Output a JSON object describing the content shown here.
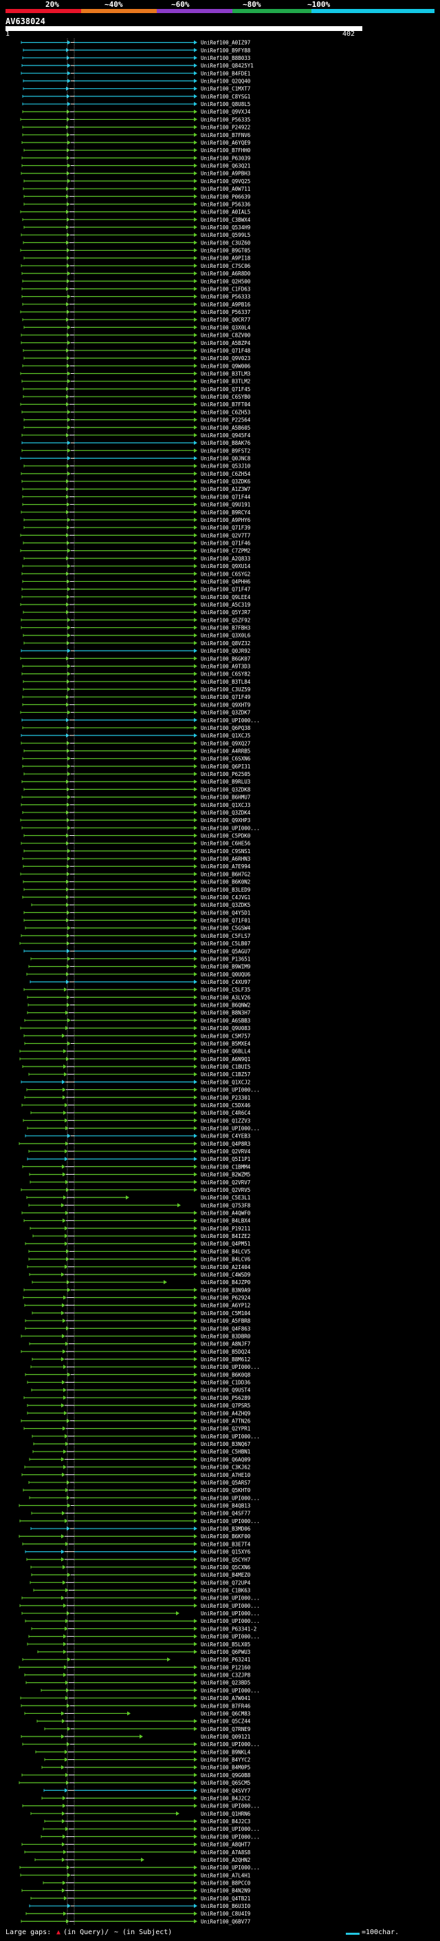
{
  "scale": {
    "ticks": [
      "20%",
      "~40%",
      "~60%",
      "~80%",
      "~100%"
    ],
    "colors": [
      "#e8142a",
      "#e8781e",
      "#8c3cc8",
      "#21a84b",
      "#14c8e6"
    ]
  },
  "query": {
    "id": "AV638024",
    "start": "1",
    "end": "402"
  },
  "legend": {
    "large_gaps_label": "Large gaps:",
    "in_query_label": "(in Query)/",
    "in_subject_label": "~ (in Subject)",
    "scale_label": "=100char."
  },
  "colors": {
    "cyan": "#23c5e0",
    "green": "#5ec828",
    "white": "#ffffff",
    "bg": "#000000"
  },
  "hits": [
    {
      "label": "UniRef100_A0IZ97",
      "color": "cyan"
    },
    {
      "label": "UniRef100_B9FY88",
      "color": "cyan"
    },
    {
      "label": "UniRef100_B8B033",
      "color": "cyan"
    },
    {
      "label": "UniRef100_Q8425Y1",
      "color": "cyan"
    },
    {
      "label": "UniRef100_B4FDE1",
      "color": "cyan"
    },
    {
      "label": "UniRef100_Q2QQ40",
      "color": "cyan"
    },
    {
      "label": "UniRef100_C1MXT7",
      "color": "cyan"
    },
    {
      "label": "UniRef100_C8YSG1",
      "color": "cyan"
    },
    {
      "label": "UniRef100_Q8U8L5",
      "color": "cyan"
    },
    {
      "label": "UniRef100_Q9VXJ4",
      "color": "green"
    },
    {
      "label": "UniRef100_P56335",
      "color": "green"
    },
    {
      "label": "UniRef100_P24922",
      "color": "green"
    },
    {
      "label": "UniRef100_B7FNV6",
      "color": "green"
    },
    {
      "label": "UniRef100_A6YQE9",
      "color": "green"
    },
    {
      "label": "UniRef100_B7FHH0",
      "color": "green"
    },
    {
      "label": "UniRef100_P63039",
      "color": "green"
    },
    {
      "label": "UniRef100_Q63Q21",
      "color": "green"
    },
    {
      "label": "UniRef100_A9PBH3",
      "color": "green"
    },
    {
      "label": "UniRef100_Q9VQ25",
      "color": "green"
    },
    {
      "label": "UniRef100_A0W711",
      "color": "green"
    },
    {
      "label": "UniRef100_P06639",
      "color": "green"
    },
    {
      "label": "UniRef100_P56336",
      "color": "green"
    },
    {
      "label": "UniRef100_A0IAL5",
      "color": "green"
    },
    {
      "label": "UniRef100_C3BWX4",
      "color": "green"
    },
    {
      "label": "UniRef100_Q534H9",
      "color": "green"
    },
    {
      "label": "UniRef100_Q599L5",
      "color": "green"
    },
    {
      "label": "UniRef100_C3UZ60",
      "color": "green"
    },
    {
      "label": "UniRef100_B9GT05",
      "color": "green"
    },
    {
      "label": "UniRef100_A9PI18",
      "color": "green"
    },
    {
      "label": "UniRef100_C7SC06",
      "color": "green"
    },
    {
      "label": "UniRef100_A6R8D0",
      "color": "green"
    },
    {
      "label": "UniRef100_Q2H500",
      "color": "green"
    },
    {
      "label": "UniRef100_C1FD63",
      "color": "green"
    },
    {
      "label": "UniRef100_P56333",
      "color": "green"
    },
    {
      "label": "UniRef100_A9PB16",
      "color": "green"
    },
    {
      "label": "UniRef100_P56337",
      "color": "green"
    },
    {
      "label": "UniRef100_Q0CR77",
      "color": "green"
    },
    {
      "label": "UniRef100_Q3X0L4",
      "color": "green"
    },
    {
      "label": "UniRef100_C8ZV00",
      "color": "green"
    },
    {
      "label": "UniRef100_A5BZP4",
      "color": "green"
    },
    {
      "label": "UniRef100_Q71F48",
      "color": "green"
    },
    {
      "label": "UniRef100_Q9V023",
      "color": "green"
    },
    {
      "label": "UniRef100_Q9W006",
      "color": "green"
    },
    {
      "label": "UniRef100_B3TLM3",
      "color": "green"
    },
    {
      "label": "UniRef100_B3TLM2",
      "color": "green"
    },
    {
      "label": "UniRef100_Q71F45",
      "color": "green"
    },
    {
      "label": "UniRef100_C6SYB0",
      "color": "green"
    },
    {
      "label": "UniRef100_B7FT04",
      "color": "green"
    },
    {
      "label": "UniRef100_C6ZH53",
      "color": "green"
    },
    {
      "label": "UniRef100_P22564",
      "color": "green"
    },
    {
      "label": "UniRef100_A5B605",
      "color": "green"
    },
    {
      "label": "UniRef100_Q945F4",
      "color": "green"
    },
    {
      "label": "UniRef100_B8AK76",
      "color": "cyan"
    },
    {
      "label": "UniRef100_B9FST2",
      "color": "green"
    },
    {
      "label": "UniRef100_Q0JNC8",
      "color": "cyan"
    },
    {
      "label": "UniRef100_Q53J10",
      "color": "green"
    },
    {
      "label": "UniRef100_C6ZH54",
      "color": "green"
    },
    {
      "label": "UniRef100_Q3ZDK6",
      "color": "green"
    },
    {
      "label": "UniRef100_A1Z3W7",
      "color": "green"
    },
    {
      "label": "UniRef100_Q71F44",
      "color": "green"
    },
    {
      "label": "UniRef100_Q9U191",
      "color": "green"
    },
    {
      "label": "UniRef100_B9RCY4",
      "color": "green"
    },
    {
      "label": "UniRef100_A9PHY6",
      "color": "green"
    },
    {
      "label": "UniRef100_Q71F39",
      "color": "green"
    },
    {
      "label": "UniRef100_Q2V7T7",
      "color": "green"
    },
    {
      "label": "UniRef100_Q71F46",
      "color": "green"
    },
    {
      "label": "UniRef100_C7ZPM2",
      "color": "green"
    },
    {
      "label": "UniRef100_A2Q833",
      "color": "green"
    },
    {
      "label": "UniRef100_Q9XU14",
      "color": "green"
    },
    {
      "label": "UniRef100_C6SYG2",
      "color": "green"
    },
    {
      "label": "UniRef100_Q4PHH6",
      "color": "green"
    },
    {
      "label": "UniRef100_Q71F47",
      "color": "green"
    },
    {
      "label": "UniRef100_Q9LEE4",
      "color": "green"
    },
    {
      "label": "UniRef100_A5C319",
      "color": "green"
    },
    {
      "label": "UniRef100_Q5YJR7",
      "color": "green"
    },
    {
      "label": "UniRef100_Q5ZF92",
      "color": "green"
    },
    {
      "label": "UniRef100_B7FBH3",
      "color": "green"
    },
    {
      "label": "UniRef100_Q3X0L6",
      "color": "green"
    },
    {
      "label": "UniRef100_Q8VZ32",
      "color": "green"
    },
    {
      "label": "UniRef100_Q0JR92",
      "color": "cyan"
    },
    {
      "label": "UniRef100_B6GK07",
      "color": "green"
    },
    {
      "label": "UniRef100_A9T3D3",
      "color": "green"
    },
    {
      "label": "UniRef100_C6SY82",
      "color": "green"
    },
    {
      "label": "UniRef100_B3TL84",
      "color": "green"
    },
    {
      "label": "UniRef100_C3UZ59",
      "color": "green"
    },
    {
      "label": "UniRef100_Q71F49",
      "color": "green"
    },
    {
      "label": "UniRef100_Q9XHT9",
      "color": "green"
    },
    {
      "label": "UniRef100_Q3ZDK7",
      "color": "green"
    },
    {
      "label": "UniRef100_UPI000...",
      "color": "cyan"
    },
    {
      "label": "UniRef100_Q6PQ38",
      "color": "green"
    },
    {
      "label": "UniRef100_Q1XCJ5",
      "color": "cyan"
    },
    {
      "label": "UniRef100_Q9XQ27",
      "color": "green"
    },
    {
      "label": "UniRef100_A4RRB5",
      "color": "green"
    },
    {
      "label": "UniRef100_C6SXN6",
      "color": "green"
    },
    {
      "label": "UniRef100_Q6PI31",
      "color": "green"
    },
    {
      "label": "UniRef100_P62505",
      "color": "green"
    },
    {
      "label": "UniRef100_B9RLU3",
      "color": "green"
    },
    {
      "label": "UniRef100_Q3ZDK8",
      "color": "green"
    },
    {
      "label": "UniRef100_B6HMU7",
      "color": "green"
    },
    {
      "label": "UniRef100_Q1XCJ3",
      "color": "green"
    },
    {
      "label": "UniRef100_Q3ZDK4",
      "color": "green"
    },
    {
      "label": "UniRef100_Q9XHP3",
      "color": "green"
    },
    {
      "label": "UniRef100_UPI000...",
      "color": "green"
    },
    {
      "label": "UniRef100_C5PDK0",
      "color": "green"
    },
    {
      "label": "UniRef100_C6HE56",
      "color": "green"
    },
    {
      "label": "UniRef100_C9SNS1",
      "color": "green"
    },
    {
      "label": "UniRef100_A6RHN3",
      "color": "green"
    },
    {
      "label": "UniRef100_A7E994",
      "color": "green"
    },
    {
      "label": "UniRef100_B6H7G2",
      "color": "green"
    },
    {
      "label": "UniRef100_B6K0N2",
      "color": "green"
    },
    {
      "label": "UniRef100_B3LED9",
      "color": "green"
    },
    {
      "label": "UniRef100_C4JVG1",
      "color": "green"
    },
    {
      "label": "UniRef100_Q3ZDK5",
      "color": "green"
    },
    {
      "label": "UniRef100_Q4Y5D1",
      "color": "green"
    },
    {
      "label": "UniRef100_Q71F01",
      "color": "green"
    },
    {
      "label": "UniRef100_C5GSW4",
      "color": "green"
    },
    {
      "label": "UniRef100_C5FLS7",
      "color": "green"
    },
    {
      "label": "UniRef100_C5LB07",
      "color": "green"
    },
    {
      "label": "UniRef100_Q5AGU7",
      "color": "cyan"
    },
    {
      "label": "UniRef100_P13651",
      "color": "green"
    },
    {
      "label": "UniRef100_B9WIM9",
      "color": "green"
    },
    {
      "label": "UniRef100_Q0UQU6",
      "color": "green"
    },
    {
      "label": "UniRef100_C4XU97",
      "color": "cyan"
    },
    {
      "label": "UniRef100_C5LF35",
      "color": "green"
    },
    {
      "label": "UniRef100_A3LV26",
      "color": "green"
    },
    {
      "label": "UniRef100_B6QNW2",
      "color": "green"
    },
    {
      "label": "UniRef100_B8N3H7",
      "color": "green"
    },
    {
      "label": "UniRef100_A6SBB3",
      "color": "green"
    },
    {
      "label": "UniRef100_Q9U083",
      "color": "green"
    },
    {
      "label": "UniRef100_C5M757",
      "color": "green"
    },
    {
      "label": "UniRef100_B5MXE4",
      "color": "green"
    },
    {
      "label": "UniRef100_Q6BLL4",
      "color": "green"
    },
    {
      "label": "UniRef100_A6N9Q1",
      "color": "green"
    },
    {
      "label": "UniRef100_C1BUI5",
      "color": "green"
    },
    {
      "label": "UniRef100_C1BZ57",
      "color": "green"
    },
    {
      "label": "UniRef100_Q1XCJ2",
      "color": "cyan"
    },
    {
      "label": "UniRef100_UPI000...",
      "color": "green"
    },
    {
      "label": "UniRef100_P23301",
      "color": "green"
    },
    {
      "label": "UniRef100_C5DX46",
      "color": "green"
    },
    {
      "label": "UniRef100_C4R6C4",
      "color": "green"
    },
    {
      "label": "UniRef100_Q1ZZV3",
      "color": "green"
    },
    {
      "label": "UniRef100_UPI000...",
      "color": "green"
    },
    {
      "label": "UniRef100_C4YEB3",
      "color": "cyan"
    },
    {
      "label": "UniRef100_Q4P8R3",
      "color": "green"
    },
    {
      "label": "UniRef100_Q2VRV4",
      "color": "green"
    },
    {
      "label": "UniRef100_Q5I1P1",
      "color": "cyan"
    },
    {
      "label": "UniRef100_C1BMM4",
      "color": "green"
    },
    {
      "label": "UniRef100_B2WZM5",
      "color": "green"
    },
    {
      "label": "UniRef100_Q2VRV7",
      "color": "green"
    },
    {
      "label": "UniRef100_Q2VRV5",
      "color": "green"
    },
    {
      "label": "UniRef100_C5E3L1",
      "color": "green"
    },
    {
      "label": "UniRef100_Q753F8",
      "color": "green"
    },
    {
      "label": "UniRef100_A4QWF0",
      "color": "green"
    },
    {
      "label": "UniRef100_B4LBX4",
      "color": "green"
    },
    {
      "label": "UniRef100_P19211",
      "color": "green"
    },
    {
      "label": "UniRef100_B4IZE2",
      "color": "green"
    },
    {
      "label": "UniRef100_Q4PM51",
      "color": "green"
    },
    {
      "label": "UniRef100_B4LCV5",
      "color": "green"
    },
    {
      "label": "UniRef100_B4LCV6",
      "color": "green"
    },
    {
      "label": "UniRef100_A2I404",
      "color": "green"
    },
    {
      "label": "UniRef100_C4WSD9",
      "color": "green"
    },
    {
      "label": "UniRef100_B4JZP0",
      "color": "green"
    },
    {
      "label": "UniRef100_B3N9A9",
      "color": "green"
    },
    {
      "label": "UniRef100_P62924",
      "color": "green"
    },
    {
      "label": "UniRef100_A6YP12",
      "color": "green"
    },
    {
      "label": "UniRef100_C5M104",
      "color": "green"
    },
    {
      "label": "UniRef100_A5FBR8",
      "color": "green"
    },
    {
      "label": "UniRef100_Q4F863",
      "color": "green"
    },
    {
      "label": "UniRef100_B3DBR0",
      "color": "green"
    },
    {
      "label": "UniRef100_A8NJF7",
      "color": "green"
    },
    {
      "label": "UniRef100_B5DQ24",
      "color": "green"
    },
    {
      "label": "UniRef100_B8M612",
      "color": "green"
    },
    {
      "label": "UniRef100_UPI000...",
      "color": "green"
    },
    {
      "label": "UniRef100_B6K0Q8",
      "color": "green"
    },
    {
      "label": "UniRef100_C1DD36",
      "color": "green"
    },
    {
      "label": "UniRef100_Q9UST4",
      "color": "green"
    },
    {
      "label": "UniRef100_P56289",
      "color": "green"
    },
    {
      "label": "UniRef100_Q7PSR5",
      "color": "green"
    },
    {
      "label": "UniRef100_A4ZHQ9",
      "color": "green"
    },
    {
      "label": "UniRef100_A7TN26",
      "color": "green"
    },
    {
      "label": "UniRef100_Q2YPR1",
      "color": "green"
    },
    {
      "label": "UniRef100_UPI000...",
      "color": "green"
    },
    {
      "label": "UniRef100_B3NQ67",
      "color": "green"
    },
    {
      "label": "UniRef100_C5HBN1",
      "color": "green"
    },
    {
      "label": "UniRef100_Q6AQ09",
      "color": "green"
    },
    {
      "label": "UniRef100_C3KJ62",
      "color": "green"
    },
    {
      "label": "UniRef100_A7HE10",
      "color": "green"
    },
    {
      "label": "UniRef100_Q5ARS7",
      "color": "green"
    },
    {
      "label": "UniRef100_Q5KHT0",
      "color": "green"
    },
    {
      "label": "UniRef100_UPI000...",
      "color": "green"
    },
    {
      "label": "UniRef100_B4QB13",
      "color": "green"
    },
    {
      "label": "UniRef100_Q4SF77",
      "color": "green"
    },
    {
      "label": "UniRef100_UPI000...",
      "color": "green"
    },
    {
      "label": "UniRef100_B3MD06",
      "color": "cyan"
    },
    {
      "label": "UniRef100_B6KF00",
      "color": "green"
    },
    {
      "label": "UniRef100_B3E7T4",
      "color": "green"
    },
    {
      "label": "UniRef100_Q15XY6",
      "color": "cyan"
    },
    {
      "label": "UniRef100_Q5CYH7",
      "color": "green"
    },
    {
      "label": "UniRef100_Q5CXN6",
      "color": "green"
    },
    {
      "label": "UniRef100_B4MEZ0",
      "color": "green"
    },
    {
      "label": "UniRef100_Q72UP4",
      "color": "green"
    },
    {
      "label": "UniRef100_C1BK63",
      "color": "green"
    },
    {
      "label": "UniRef100_UPI000...",
      "color": "green"
    },
    {
      "label": "UniRef100_UPI000...",
      "color": "green"
    },
    {
      "label": "UniRef100_UPI000...",
      "color": "green"
    },
    {
      "label": "UniRef100_UPI000...",
      "color": "green"
    },
    {
      "label": "UniRef100_P63341-2",
      "color": "green"
    },
    {
      "label": "UniRef100_UPI000...",
      "color": "green"
    },
    {
      "label": "UniRef100_B5LX05",
      "color": "green"
    },
    {
      "label": "UniRef100_Q6PWU3",
      "color": "green"
    },
    {
      "label": "UniRef100_P63241",
      "color": "green"
    },
    {
      "label": "UniRef100_P12160",
      "color": "green"
    },
    {
      "label": "UniRef100_C3ZJP8",
      "color": "green"
    },
    {
      "label": "UniRef100_Q23BD5",
      "color": "green"
    },
    {
      "label": "UniRef100_UPI000...",
      "color": "green"
    },
    {
      "label": "UniRef100_A7W041",
      "color": "green"
    },
    {
      "label": "UniRef100_B7FR46",
      "color": "green"
    },
    {
      "label": "UniRef100_Q6CM83",
      "color": "green"
    },
    {
      "label": "UniRef100_Q5CZ44",
      "color": "green"
    },
    {
      "label": "UniRef100_Q7RNE9",
      "color": "green"
    },
    {
      "label": "UniRef100_Q09121",
      "color": "green"
    },
    {
      "label": "UniRef100_UPI000...",
      "color": "green"
    },
    {
      "label": "UniRef100_B9NKL4",
      "color": "green"
    },
    {
      "label": "UniRef100_B4YYC2",
      "color": "green"
    },
    {
      "label": "UniRef100_B4M0P5",
      "color": "green"
    },
    {
      "label": "UniRef100_Q9G0B8",
      "color": "green"
    },
    {
      "label": "UniRef100_Q6SCM5",
      "color": "green"
    },
    {
      "label": "UniRef100_Q4SVY7",
      "color": "cyan"
    },
    {
      "label": "UniRef100_B4J2C2",
      "color": "green"
    },
    {
      "label": "UniRef100_UPI000...",
      "color": "green"
    },
    {
      "label": "UniRef100_Q1HRN6",
      "color": "green"
    },
    {
      "label": "UniRef100_B4J2C3",
      "color": "green"
    },
    {
      "label": "UniRef100_UPI000...",
      "color": "green"
    },
    {
      "label": "UniRef100_UPI000...",
      "color": "green"
    },
    {
      "label": "UniRef100_A8QHT7",
      "color": "green"
    },
    {
      "label": "UniRef100_A7A8S8",
      "color": "green"
    },
    {
      "label": "UniRef100_A2QHN2",
      "color": "green"
    },
    {
      "label": "UniRef100_UPI000...",
      "color": "green"
    },
    {
      "label": "UniRef100_A7L4H1",
      "color": "green"
    },
    {
      "label": "UniRef100_B8PCC0",
      "color": "green"
    },
    {
      "label": "UniRef100_B4N2N9",
      "color": "green"
    },
    {
      "label": "UniRef100_Q4TB21",
      "color": "green"
    },
    {
      "label": "UniRef100_B6U3I0",
      "color": "cyan"
    },
    {
      "label": "UniRef100_C8U4I9",
      "color": "green"
    },
    {
      "label": "UniRef100_Q6BV77",
      "color": "green"
    }
  ]
}
